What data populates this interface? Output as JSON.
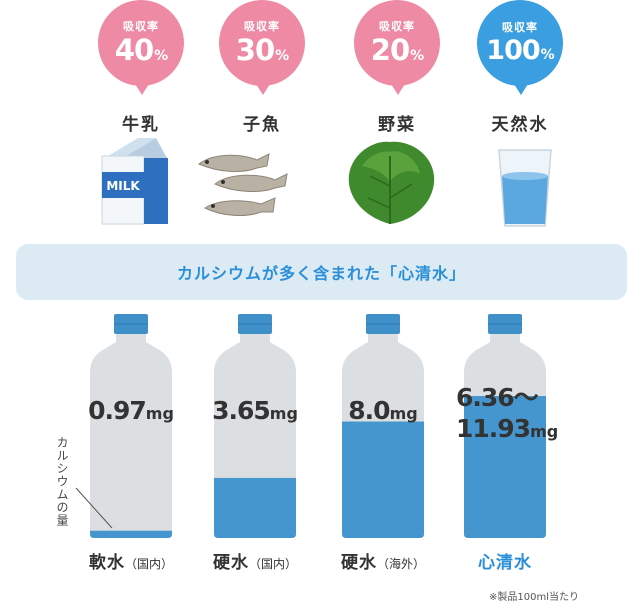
{
  "sources": [
    {
      "absorption_label": "吸収率",
      "rate": "40",
      "unit": "%",
      "name": "牛乳",
      "color": "#ef8aa5",
      "rate_fraction": 0.4,
      "image": "milk-carton",
      "carton_text": "MILK"
    },
    {
      "absorption_label": "吸収率",
      "rate": "30",
      "unit": "%",
      "name": "子魚",
      "color": "#ef8aa5",
      "rate_fraction": 0.3,
      "image": "small-fish"
    },
    {
      "absorption_label": "吸収率",
      "rate": "20",
      "unit": "%",
      "name": "野菜",
      "color": "#ef8aa5",
      "rate_fraction": 0.2,
      "image": "leafy-vegetable"
    },
    {
      "absorption_label": "吸収率",
      "rate": "100",
      "unit": "%",
      "name": "天然水",
      "color": "#3a9ee0",
      "rate_fraction": 1.0,
      "image": "glass-of-water"
    }
  ],
  "banner": {
    "text": "カルシウムが多く含まれた「心清水」"
  },
  "bottles": [
    {
      "amount": "0.97",
      "unit": "mg",
      "name": "軟水",
      "sub": "（国内）",
      "fill_fraction": 0.04
    },
    {
      "amount": "3.65",
      "unit": "mg",
      "name": "硬水",
      "sub": "（国内）",
      "fill_fraction": 0.33
    },
    {
      "amount": "8.0",
      "unit": "mg",
      "name": "硬水",
      "sub": "（海外）",
      "fill_fraction": 0.64
    },
    {
      "amount": "6.36～",
      "amount2": "11.93",
      "unit": "mg",
      "name": "心清水",
      "sub": "",
      "fill_fraction": 0.78
    }
  ],
  "annotation": "カルシウムの量",
  "footnote": "※製品100ml当たり",
  "colors": {
    "pink": "#ef8aa5",
    "blue": "#3a9ee0",
    "water": "#4596cf",
    "cap": "#3f8fc9",
    "bottle_body": "#dcdfe2",
    "accent_text": "#2a8fd8",
    "banner_bg": "#dbeaf3"
  }
}
